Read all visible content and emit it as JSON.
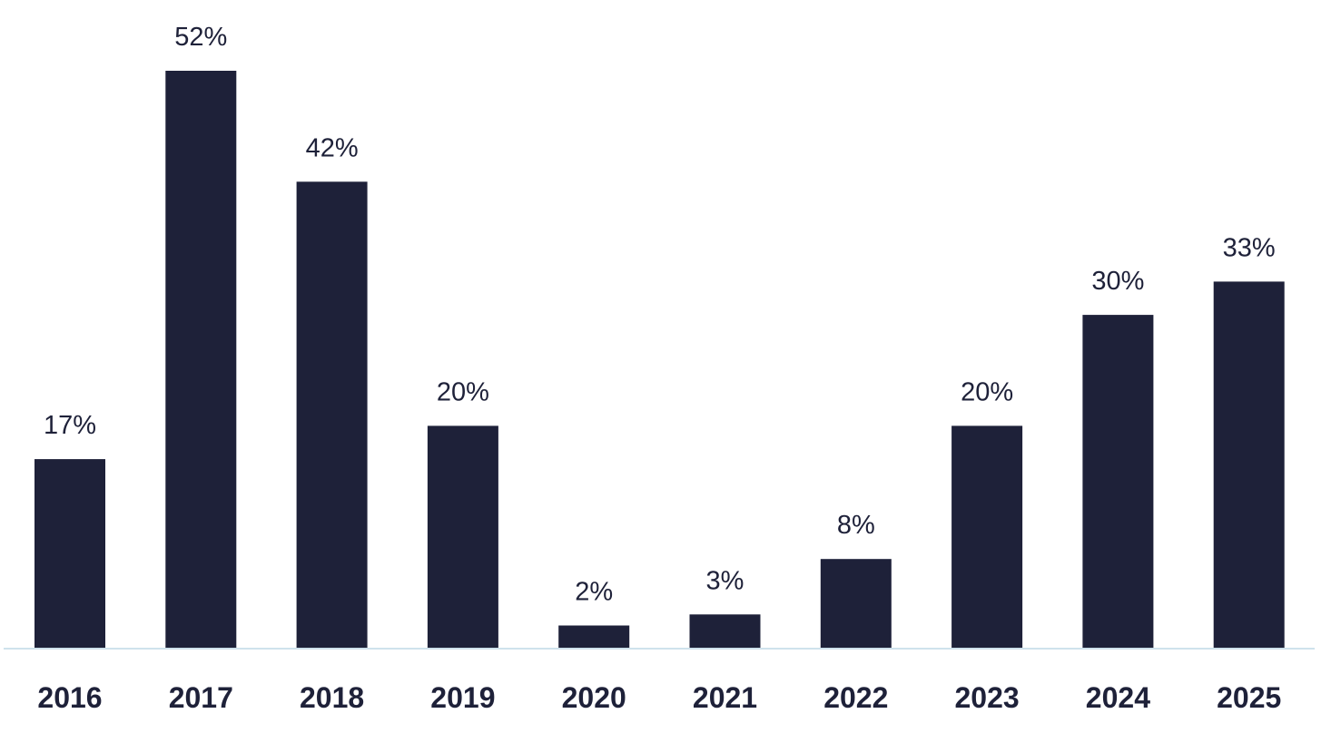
{
  "chart_data": {
    "type": "bar",
    "title": "",
    "xlabel": "",
    "ylabel": "",
    "categories": [
      "2016",
      "2017",
      "2018",
      "2019",
      "2020",
      "2021",
      "2022",
      "2023",
      "2024",
      "2025"
    ],
    "values": [
      17,
      52,
      42,
      20,
      2,
      3,
      8,
      20,
      30,
      33
    ],
    "data_labels": [
      "17%",
      "52%",
      "42%",
      "20%",
      "2%",
      "3%",
      "8%",
      "20%",
      "30%",
      "33%"
    ],
    "ylim": [
      0,
      52
    ],
    "grid": false,
    "legend": "none",
    "colors": {
      "bar": "#1e2139",
      "text": "#1e2139",
      "baseline": "#cfe2ec"
    }
  }
}
